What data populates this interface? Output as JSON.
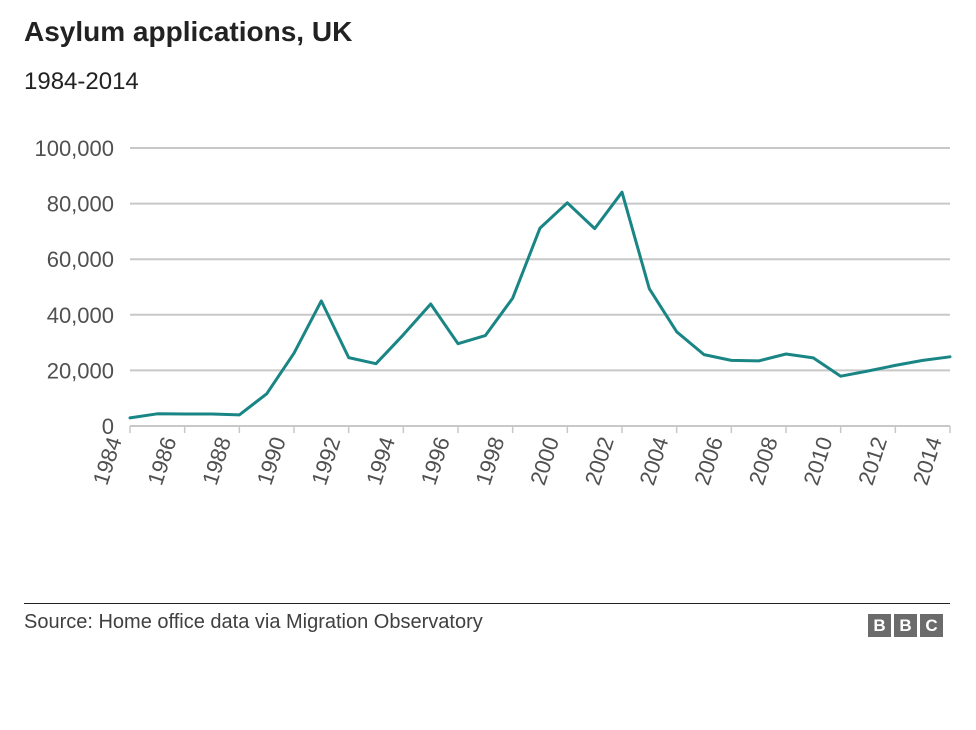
{
  "title": "Asylum applications, UK",
  "subtitle": "1984-2014",
  "source": "Source: Home office data via Migration Observatory",
  "logo": [
    "B",
    "B",
    "C"
  ],
  "colors": {
    "line": "#1a8585",
    "grid": "#c8c8c8",
    "axis_text": "#505050"
  },
  "chart_data": {
    "type": "line",
    "title": "Asylum applications, UK",
    "subtitle": "1984-2014",
    "xlabel": "",
    "ylabel": "",
    "xlim": [
      1984,
      2014
    ],
    "ylim": [
      0,
      100000
    ],
    "yticks": [
      0,
      20000,
      40000,
      60000,
      80000,
      100000
    ],
    "ytick_labels": [
      "0",
      "20,000",
      "40,000",
      "60,000",
      "80,000",
      "100,000"
    ],
    "xticks": [
      1984,
      1986,
      1988,
      1990,
      1992,
      1994,
      1996,
      1998,
      2000,
      2002,
      2004,
      2006,
      2008,
      2010,
      2012,
      2014
    ],
    "xtick_labels": [
      "1984",
      "1986",
      "1988",
      "1990",
      "1992",
      "1994",
      "1996",
      "1998",
      "2000",
      "2002",
      "2004",
      "2006",
      "2008",
      "2010",
      "2012",
      "2014"
    ],
    "grid": true,
    "x": [
      1984,
      1985,
      1986,
      1987,
      1988,
      1989,
      1990,
      1991,
      1992,
      1993,
      1994,
      1995,
      1996,
      1997,
      1998,
      1999,
      2000,
      2001,
      2002,
      2003,
      2004,
      2005,
      2006,
      2007,
      2008,
      2009,
      2010,
      2011,
      2012,
      2013,
      2014
    ],
    "series": [
      {
        "values": [
          2900,
          4400,
          4300,
          4300,
          4000,
          11600,
          26200,
          45000,
          24600,
          22400,
          32800,
          43900,
          29600,
          32500,
          46000,
          71200,
          80300,
          71000,
          84100,
          49400,
          33900,
          25700,
          23600,
          23400,
          25900,
          24500,
          17900,
          19800,
          21800,
          23600,
          24900
        ]
      }
    ]
  }
}
